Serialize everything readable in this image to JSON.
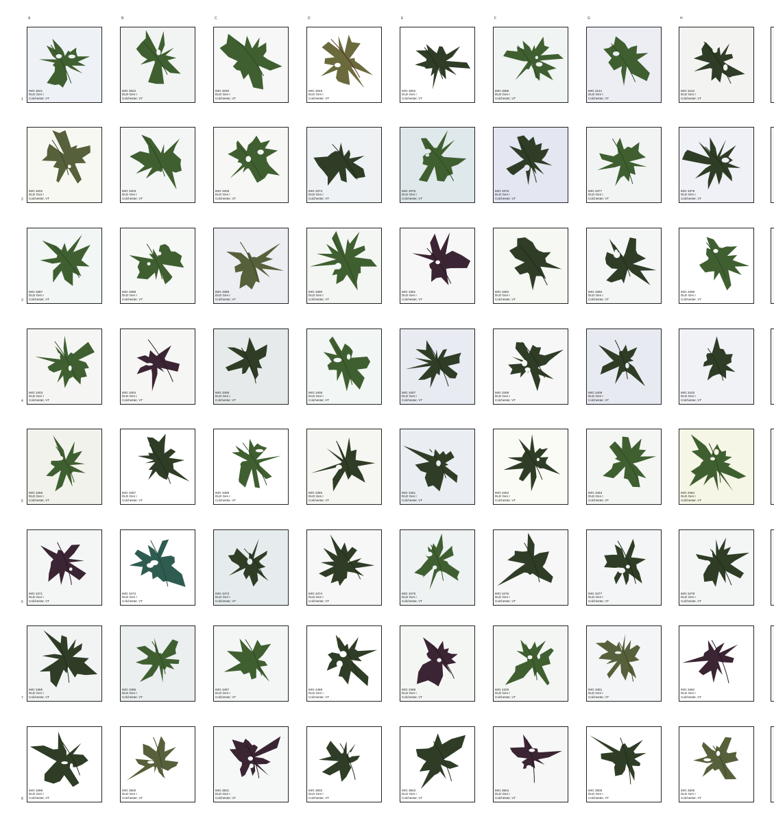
{
  "columns": [
    "A",
    "B",
    "C",
    "D",
    "E",
    "F",
    "G",
    "H"
  ],
  "rows": [
    "1",
    "2",
    "3",
    "4",
    "5",
    "6",
    "7",
    "8"
  ],
  "caption_common": {
    "collection": "DLD Gen I",
    "location": "Colchester, VT"
  },
  "colors": {
    "leaf_green": "#3d5a2c",
    "leaf_dark": "#2e3a24",
    "leaf_maroon": "#3a2230",
    "leaf_teal": "#2f5a4e",
    "frame": "#222222"
  },
  "cells": [
    {
      "id": "1A",
      "img": "IMG 3021",
      "leaf": "green",
      "bg": "#eef2f6"
    },
    {
      "id": "1B",
      "img": "IMG 3022",
      "leaf": "green",
      "bg": "#f1f4f2"
    },
    {
      "id": "1C",
      "img": "IMG 3030",
      "leaf": "green",
      "bg": "#f6f7f6"
    },
    {
      "id": "1D",
      "img": "IMG 3046",
      "leaf": "olive-red",
      "bg": "#ffffff"
    },
    {
      "id": "1E",
      "img": "IMG 3002",
      "leaf": "dark",
      "bg": "#ffffff"
    },
    {
      "id": "1F",
      "img": "IMG 3088",
      "leaf": "green",
      "bg": "#f0f4f2"
    },
    {
      "id": "1G",
      "img": "IMG 3141",
      "leaf": "green",
      "bg": "#eceef4"
    },
    {
      "id": "1H",
      "img": "IMG 3142",
      "leaf": "dark",
      "bg": "#f3f4f2"
    },
    {
      "id": "2A",
      "img": "IMG 3202",
      "leaf": "olive",
      "bg": "#f8f8f2"
    },
    {
      "id": "2B",
      "img": "IMG 3203",
      "leaf": "green",
      "bg": "#f4f6f6"
    },
    {
      "id": "2C",
      "img": "IMG 3206",
      "leaf": "green",
      "bg": "#f7f8f6"
    },
    {
      "id": "2D",
      "img": "IMG 3374",
      "leaf": "dark",
      "bg": "#eef2f4"
    },
    {
      "id": "2E",
      "img": "IMG 3375",
      "leaf": "green",
      "bg": "#dfe8ea"
    },
    {
      "id": "2F",
      "img": "IMG 3376",
      "leaf": "dark",
      "bg": "#e4e6f2"
    },
    {
      "id": "2G",
      "img": "IMG 3377",
      "leaf": "green",
      "bg": "#f2f4f4"
    },
    {
      "id": "2H",
      "img": "IMG 3378",
      "leaf": "dark",
      "bg": "#f0f1f6"
    },
    {
      "id": "3A",
      "img": "IMG 3387",
      "leaf": "green",
      "bg": "#f2f6f4"
    },
    {
      "id": "3B",
      "img": "IMG 3388",
      "leaf": "green",
      "bg": "#f6f8f6"
    },
    {
      "id": "3C",
      "img": "IMG 3389",
      "leaf": "olive",
      "bg": "#eceef2"
    },
    {
      "id": "3D",
      "img": "IMG 3390",
      "leaf": "green",
      "bg": "#f4f6f4"
    },
    {
      "id": "3E",
      "img": "IMG 3391",
      "leaf": "maroon",
      "bg": "#f6f7f6"
    },
    {
      "id": "3F",
      "img": "IMG 3392",
      "leaf": "dark",
      "bg": "#f6f8f4"
    },
    {
      "id": "3G",
      "img": "IMG 3393",
      "leaf": "dark",
      "bg": "#f4f6f6"
    },
    {
      "id": "3H",
      "img": "IMG 3396",
      "leaf": "green",
      "bg": "#ffffff"
    },
    {
      "id": "4A",
      "img": "IMG 3403",
      "leaf": "green",
      "bg": "#f5f6f4"
    },
    {
      "id": "4B",
      "img": "IMG 3404",
      "leaf": "maroon",
      "bg": "#f6f6f4"
    },
    {
      "id": "4C",
      "img": "IMG 3405",
      "leaf": "dark",
      "bg": "#e6eaea"
    },
    {
      "id": "4D",
      "img": "IMG 3406",
      "leaf": "green",
      "bg": "#f2f6f4"
    },
    {
      "id": "4E",
      "img": "IMG 3407",
      "leaf": "dark",
      "bg": "#e8ebf2"
    },
    {
      "id": "4F",
      "img": "IMG 3408",
      "leaf": "dark",
      "bg": "#f6f7f6"
    },
    {
      "id": "4G",
      "img": "IMG 3409",
      "leaf": "dark",
      "bg": "#e8eaf2"
    },
    {
      "id": "4H",
      "img": "IMG 3410",
      "leaf": "dark",
      "bg": "#f0f2f6"
    },
    {
      "id": "5A",
      "img": "IMG 3456",
      "leaf": "green",
      "bg": "#f2f2ec"
    },
    {
      "id": "5B",
      "img": "IMG 3457",
      "leaf": "dark",
      "bg": "#ffffff"
    },
    {
      "id": "5C",
      "img": "IMG 3458",
      "leaf": "green",
      "bg": "#ffffff"
    },
    {
      "id": "5D",
      "img": "IMG 3460",
      "leaf": "dark",
      "bg": "#f6f6f2"
    },
    {
      "id": "5E",
      "img": "IMG 3461",
      "leaf": "dark",
      "bg": "#eaeef2"
    },
    {
      "id": "5F",
      "img": "IMG 3462",
      "leaf": "dark",
      "bg": "#fbfbf6"
    },
    {
      "id": "5G",
      "img": "IMG 3463",
      "leaf": "green",
      "bg": "#f4f6f4"
    },
    {
      "id": "5H",
      "img": "IMG 3464",
      "leaf": "green",
      "bg": "#f6f6e6"
    },
    {
      "id": "6A",
      "img": "IMG 3471",
      "leaf": "maroon",
      "bg": "#f4f6f6"
    },
    {
      "id": "6B",
      "img": "IMG 3472",
      "leaf": "teal",
      "bg": "#ffffff"
    },
    {
      "id": "6C",
      "img": "IMG 3473",
      "leaf": "dark",
      "bg": "#e6ecee"
    },
    {
      "id": "6D",
      "img": "IMG 3474",
      "leaf": "dark",
      "bg": "#f6f7f6"
    },
    {
      "id": "6E",
      "img": "IMG 3475",
      "leaf": "green",
      "bg": "#eef2f2"
    },
    {
      "id": "6F",
      "img": "IMG 3476",
      "leaf": "dark",
      "bg": "#f6f7f6"
    },
    {
      "id": "6G",
      "img": "IMG 3477",
      "leaf": "dark",
      "bg": "#f3f5f6"
    },
    {
      "id": "6H",
      "img": "IMG 3478",
      "leaf": "dark",
      "bg": "#f4f6f6"
    },
    {
      "id": "7A",
      "img": "IMG 3485",
      "leaf": "dark",
      "bg": "#f2f4f4"
    },
    {
      "id": "7B",
      "img": "IMG 3486",
      "leaf": "green",
      "bg": "#ebeff0"
    },
    {
      "id": "7C",
      "img": "IMG 3487",
      "leaf": "green",
      "bg": "#f4f6f6"
    },
    {
      "id": "7D",
      "img": "IMG 4488",
      "leaf": "dark",
      "bg": "#ffffff"
    },
    {
      "id": "7E",
      "img": "IMG 3489",
      "leaf": "maroon",
      "bg": "#f4f6f4"
    },
    {
      "id": "7F",
      "img": "IMG 4329",
      "leaf": "green",
      "bg": "#f4f6f4"
    },
    {
      "id": "7G",
      "img": "IMG 3491",
      "leaf": "olive",
      "bg": "#f3f5f6"
    },
    {
      "id": "7H",
      "img": "IMG 3492",
      "leaf": "maroon",
      "bg": "#ffffff"
    },
    {
      "id": "8A",
      "img": "IMG 3498",
      "leaf": "dark",
      "bg": "#ffffff"
    },
    {
      "id": "8B",
      "img": "IMG 3500",
      "leaf": "olive",
      "bg": "#ffffff"
    },
    {
      "id": "8C",
      "img": "IMG 3501",
      "leaf": "maroon",
      "bg": "#f5f8f6"
    },
    {
      "id": "8D",
      "img": "IMG 3502",
      "leaf": "dark",
      "bg": "#ffffff"
    },
    {
      "id": "8E",
      "img": "IMG 3503",
      "leaf": "dark",
      "bg": "#ffffff"
    },
    {
      "id": "8F",
      "img": "IMG 3504",
      "leaf": "maroon",
      "bg": "#f6f7f6"
    },
    {
      "id": "8G",
      "img": "IMG 3505",
      "leaf": "dark",
      "bg": "#ffffff"
    },
    {
      "id": "8H",
      "img": "IMG 3506",
      "leaf": "olive",
      "bg": "#ffffff"
    }
  ]
}
